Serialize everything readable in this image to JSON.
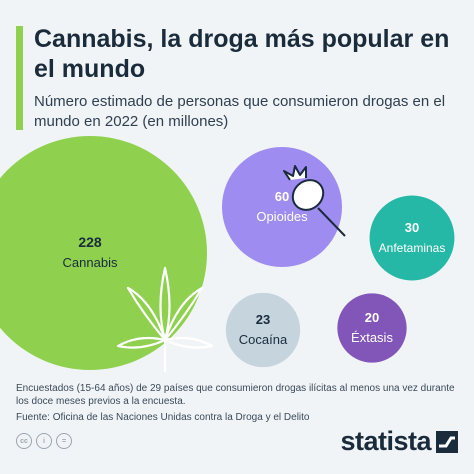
{
  "title": "Cannabis, la droga más popular en el mundo",
  "subtitle": "Número estimado de personas que consumieron drogas en el mundo en 2022 (en millones)",
  "chart_data": {
    "type": "bubble",
    "unit": "millones",
    "categories": [
      "Cannabis",
      "Opioides",
      "Anfetaminas",
      "Cocaína",
      "Éxtasis"
    ],
    "values": [
      228,
      60,
      30,
      23,
      20
    ],
    "value_labels": [
      "228",
      "60",
      "30",
      "23",
      "20"
    ],
    "colors": [
      "#8fd14f",
      "#9f8cf0",
      "#26b8a6",
      "#c6d4de",
      "#8255b8"
    ],
    "label_colors": [
      "#1a2b3c",
      "#ffffff",
      "#ffffff",
      "#1a2b3c",
      "#ffffff"
    ]
  },
  "footnote": "Encuestados (15-64 años) de 29 países que consumieron drogas ilícitas al menos una vez durante los doce meses previos a la encuesta.",
  "source": "Fuente: Oficina de las Naciones Unidas contra la Droga y el Delito",
  "brand": {
    "name": "statista"
  },
  "license_icons": [
    "cc",
    "i",
    "="
  ]
}
